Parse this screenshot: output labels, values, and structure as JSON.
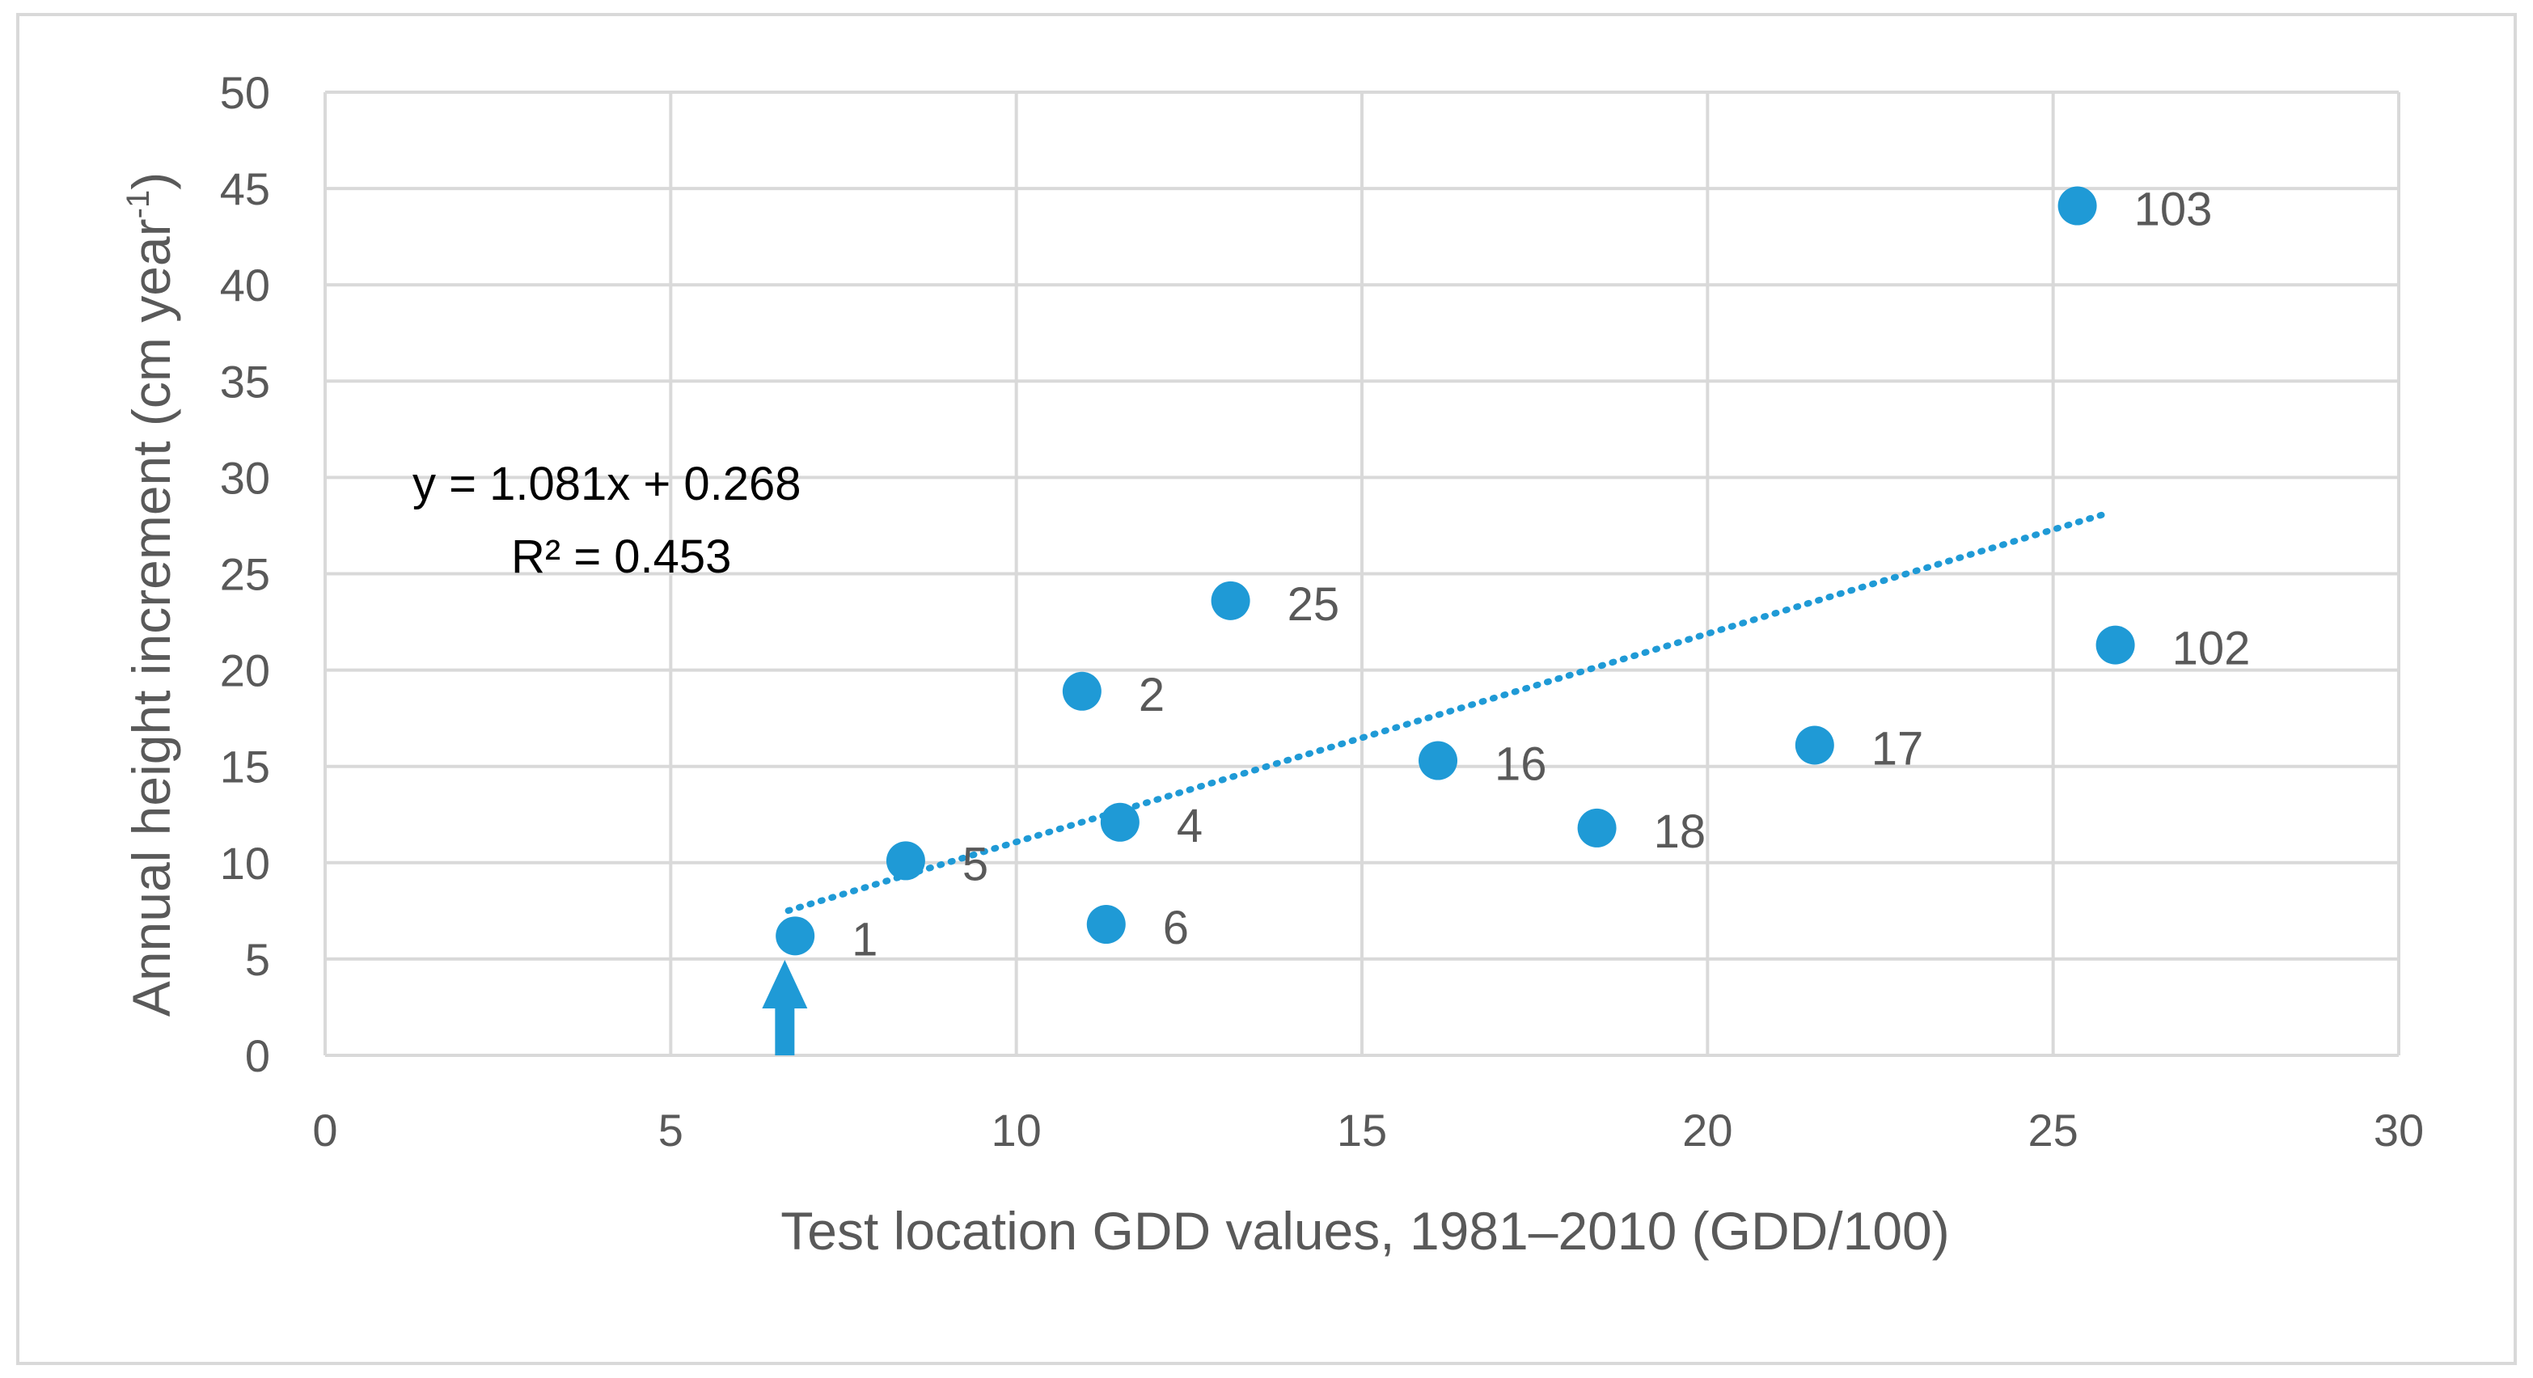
{
  "chart_data": {
    "type": "scatter",
    "title": "",
    "xlabel": "Test location GDD values, 1981–2010 (GDD/100)",
    "ylabel_main": "Annual height increment (cm year",
    "ylabel_sup": "-1",
    "ylabel_close": ")",
    "xlim": [
      0,
      30
    ],
    "ylim": [
      0,
      50
    ],
    "xticks": [
      0,
      5,
      10,
      15,
      20,
      25,
      30
    ],
    "yticks": [
      0,
      5,
      10,
      15,
      20,
      25,
      30,
      35,
      40,
      45,
      50
    ],
    "grid": true,
    "points": [
      {
        "label": "1",
        "x": 6.8,
        "y": 6.2
      },
      {
        "label": "5",
        "x": 8.4,
        "y": 10.1
      },
      {
        "label": "2",
        "x": 10.95,
        "y": 18.9
      },
      {
        "label": "4",
        "x": 11.5,
        "y": 12.1
      },
      {
        "label": "6",
        "x": 11.3,
        "y": 6.8
      },
      {
        "label": "25",
        "x": 13.1,
        "y": 23.6
      },
      {
        "label": "16",
        "x": 16.1,
        "y": 15.3
      },
      {
        "label": "18",
        "x": 18.4,
        "y": 11.8
      },
      {
        "label": "17",
        "x": 21.55,
        "y": 16.1
      },
      {
        "label": "103",
        "x": 25.35,
        "y": 44.1
      },
      {
        "label": "102",
        "x": 25.9,
        "y": 21.3
      }
    ],
    "trendline": {
      "slope": 1.081,
      "intercept": 0.268,
      "x_start": 6.7,
      "x_end": 25.7,
      "equation": "y = 1.081x + 0.268",
      "r2_label": "R² = 0.453"
    },
    "arrow_x": 6.65,
    "colors": {
      "point": "#1f9ad6",
      "grid": "#d9d9d9",
      "text": "#595959",
      "equation": "#000000",
      "border": "#d9d9d9"
    }
  }
}
